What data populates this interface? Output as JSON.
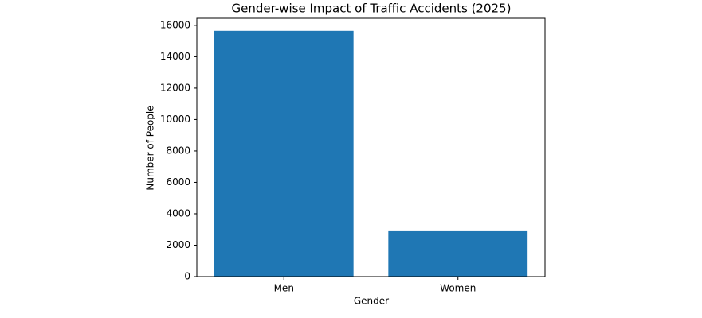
{
  "chart_data": {
    "type": "bar",
    "title": "Gender-wise Impact of Traffic Accidents (2025)",
    "x_label": "Gender",
    "y_label": "Number of People",
    "categories": [
      "Men",
      "Women"
    ],
    "values": [
      15650,
      2940
    ],
    "color": "#1f77b4",
    "ylim": [
      0,
      16450
    ],
    "yticks": [
      0,
      2000,
      4000,
      6000,
      8000,
      10000,
      12000,
      14000,
      16000
    ],
    "grid": false
  }
}
